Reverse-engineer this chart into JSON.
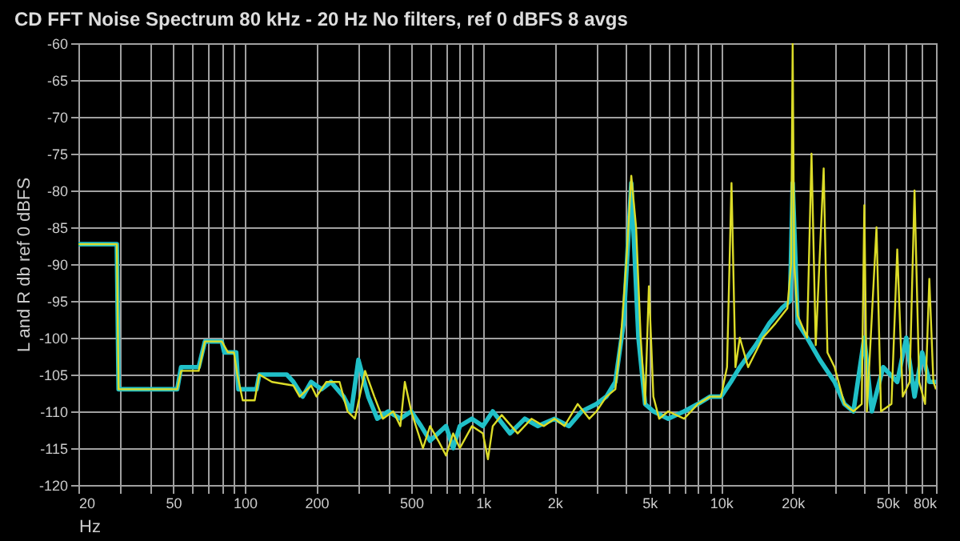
{
  "chart_data": {
    "type": "line",
    "title": "CD FFT Noise Spectrum  80 kHz - 20 Hz  No filters,  ref 0 dBFS  8 avgs",
    "xlabel": "Hz",
    "ylabel": "L and R db ref 0 dBFS",
    "log": "x",
    "grid": true,
    "marker": "none",
    "line_style": "solid",
    "xlim": [
      20,
      80000
    ],
    "ylim": [
      -120,
      -60
    ],
    "xticks": [
      20,
      {
        "value": 30,
        "label": null
      },
      {
        "value": 40,
        "label": null
      },
      50,
      {
        "value": 60,
        "label": null
      },
      {
        "value": 70,
        "label": null
      },
      {
        "value": 80,
        "label": null
      },
      {
        "value": 90,
        "label": null
      },
      100,
      200,
      {
        "value": 300,
        "label": null
      },
      {
        "value": 400,
        "label": null
      },
      500,
      {
        "value": 600,
        "label": null
      },
      {
        "value": 700,
        "label": null
      },
      {
        "value": 800,
        "label": null
      },
      {
        "value": 900,
        "label": null
      },
      {
        "value": 1000,
        "label": "1k"
      },
      {
        "value": 2000,
        "label": "2k"
      },
      {
        "value": 3000,
        "label": null
      },
      {
        "value": 4000,
        "label": null
      },
      {
        "value": 5000,
        "label": "5k"
      },
      {
        "value": 6000,
        "label": null
      },
      {
        "value": 7000,
        "label": null
      },
      {
        "value": 8000,
        "label": null
      },
      {
        "value": 9000,
        "label": null
      },
      {
        "value": 10000,
        "label": "10k"
      },
      {
        "value": 20000,
        "label": "20k"
      },
      {
        "value": 30000,
        "label": null
      },
      {
        "value": 40000,
        "label": null
      },
      {
        "value": 50000,
        "label": "50k"
      },
      {
        "value": 60000,
        "label": null
      },
      {
        "value": 70000,
        "label": null
      },
      {
        "value": 80000,
        "label": "80k"
      }
    ],
    "yticks": [
      -120,
      -115,
      -110,
      -105,
      -100,
      -95,
      -90,
      -85,
      -80,
      -75,
      -70,
      -65,
      -60
    ],
    "series": [
      {
        "color": "#20c0c8",
        "x": [
          20,
          29,
          29.5,
          52,
          54,
          64,
          68,
          80,
          82,
          92,
          94,
          112,
          115,
          150,
          160,
          175,
          190,
          210,
          230,
          260,
          280,
          300,
          330,
          360,
          400,
          450,
          500,
          550,
          600,
          700,
          750,
          800,
          900,
          1000,
          1100,
          1300,
          1500,
          1700,
          2000,
          2300,
          2600,
          3000,
          3300,
          3600,
          3900,
          4200,
          4500,
          4800,
          5200,
          6000,
          7000,
          8000,
          9000,
          10000,
          11000,
          12000,
          14000,
          16000,
          18000,
          19500,
          20000,
          21000,
          23000,
          26000,
          30000,
          33000,
          36000,
          40000,
          43000,
          48000,
          55000,
          60000,
          65000,
          70000,
          75000,
          80000
        ],
        "values": [
          -87.3,
          -87.3,
          -107,
          -107,
          -104,
          -104,
          -100.5,
          -100.5,
          -102,
          -102,
          -107,
          -107,
          -105,
          -105,
          -106,
          -108,
          -106,
          -107,
          -106,
          -108,
          -110,
          -103,
          -108,
          -111,
          -110,
          -111,
          -110,
          -112,
          -114,
          -112,
          -115,
          -112,
          -111,
          -112,
          -110,
          -113,
          -111,
          -112,
          -111,
          -112,
          -110,
          -109,
          -108,
          -106,
          -98,
          -79,
          -100,
          -109,
          -110,
          -111,
          -110,
          -109,
          -108,
          -108,
          -106,
          -104,
          -101,
          -98,
          -96,
          -95,
          -79,
          -98,
          -100,
          -103,
          -106,
          -109,
          -110,
          -100,
          -110,
          -104,
          -106,
          -100,
          -108,
          -102,
          -106,
          -106
        ]
      },
      {
        "color": "#dcdc28",
        "x": [
          20,
          29,
          29.5,
          52,
          54,
          64,
          68,
          80,
          85,
          90,
          93,
          98,
          110,
          115,
          130,
          160,
          170,
          190,
          200,
          220,
          250,
          270,
          290,
          320,
          350,
          380,
          420,
          450,
          470,
          500,
          560,
          600,
          650,
          700,
          750,
          800,
          900,
          1000,
          1050,
          1100,
          1200,
          1400,
          1600,
          1800,
          2000,
          2200,
          2500,
          2800,
          3000,
          3300,
          3600,
          3800,
          4000,
          4200,
          4400,
          4600,
          4800,
          4980,
          5200,
          5500,
          6000,
          7000,
          8000,
          9000,
          10000,
          10600,
          11070,
          11500,
          12000,
          13000,
          15000,
          17000,
          19000,
          19700,
          20000,
          20300,
          21000,
          23000,
          24000,
          25000,
          27000,
          28000,
          30000,
          33000,
          36000,
          39000,
          40000,
          41000,
          45000,
          47000,
          52000,
          55000,
          58000,
          62000,
          65000,
          68000,
          72000,
          75000,
          78000,
          80000
        ],
        "values": [
          -87.3,
          -87.3,
          -107,
          -107,
          -104.5,
          -104.5,
          -100.5,
          -100.5,
          -102,
          -102,
          -105,
          -108.5,
          -108.5,
          -105,
          -106,
          -106.5,
          -108,
          -106.5,
          -108,
          -106,
          -106,
          -110,
          -111,
          -104.5,
          -108,
          -111,
          -110,
          -112,
          -106,
          -110,
          -115,
          -112,
          -114,
          -116,
          -113,
          -115,
          -112,
          -113,
          -116.5,
          -112,
          -110.5,
          -113,
          -111,
          -112,
          -111,
          -112,
          -109,
          -111,
          -110,
          -108,
          -107,
          -100,
          -90,
          -78,
          -85,
          -100,
          -109,
          -93,
          -108,
          -111,
          -110,
          -111,
          -109,
          -108,
          -108,
          -104,
          -79,
          -104,
          -100,
          -104,
          -100,
          -98,
          -96,
          -90,
          -60,
          -90,
          -97,
          -100,
          -75,
          -101,
          -77,
          -102,
          -104,
          -109,
          -110,
          -109,
          -82,
          -110,
          -85,
          -110,
          -109,
          -88,
          -108,
          -106,
          -80,
          -106,
          -109,
          -92,
          -106,
          -107
        ]
      }
    ]
  }
}
